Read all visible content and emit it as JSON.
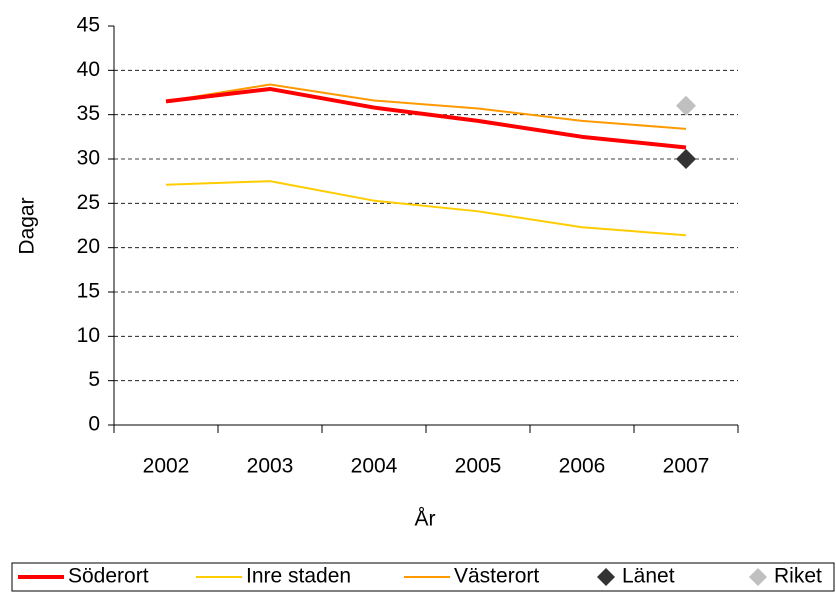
{
  "chart_data": {
    "type": "line",
    "x_label": "År",
    "y_label": "Dagar",
    "categories": [
      "2002",
      "2003",
      "2004",
      "2005",
      "2006",
      "2007"
    ],
    "series": [
      {
        "name": "Söderort",
        "color": "#ff0000",
        "width": 4,
        "values": [
          36.5,
          37.9,
          35.8,
          34.3,
          32.5,
          31.3
        ]
      },
      {
        "name": "Inre staden",
        "color": "#ffcc00",
        "width": 2,
        "values": [
          27.1,
          27.5,
          25.3,
          24.1,
          22.3,
          21.4
        ]
      },
      {
        "name": "Västerort",
        "color": "#ff9900",
        "width": 2,
        "values": [
          36.5,
          38.4,
          36.6,
          35.7,
          34.3,
          33.4
        ]
      },
      {
        "name": "Länet",
        "color": "#333333",
        "marker": "diamond",
        "values": [
          null,
          null,
          null,
          null,
          null,
          30
        ]
      },
      {
        "name": "Riket",
        "color": "#c0c0c0",
        "marker": "diamond",
        "values": [
          null,
          null,
          null,
          null,
          null,
          36
        ]
      }
    ],
    "ylim": [
      0,
      45
    ],
    "yticks": [
      0,
      5,
      10,
      15,
      20,
      25,
      30,
      35,
      40,
      45
    ],
    "grid": true,
    "legend": "bottom"
  }
}
